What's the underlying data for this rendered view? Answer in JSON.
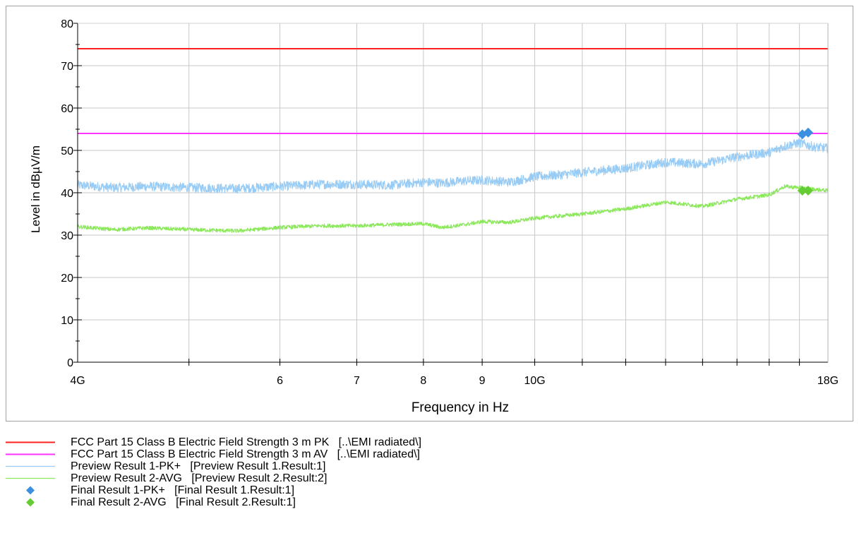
{
  "chart_data": {
    "type": "line",
    "title": "",
    "xlabel": "Frequency in Hz",
    "ylabel": "Level in dBµV/m",
    "x_scale": "log",
    "xlim_hz": [
      4000000000,
      18000000000
    ],
    "ylim": [
      0,
      80
    ],
    "grid": true,
    "legend_position": "bottom",
    "x_tick_labels": [
      {
        "value": 4000000000,
        "label": "4G"
      },
      {
        "value": 6000000000,
        "label": "6"
      },
      {
        "value": 7000000000,
        "label": "7"
      },
      {
        "value": 8000000000,
        "label": "8"
      },
      {
        "value": 9000000000,
        "label": "9"
      },
      {
        "value": 10000000000,
        "label": "10G"
      },
      {
        "value": 18000000000,
        "label": "18G"
      }
    ],
    "y_ticks": [
      0,
      10,
      20,
      30,
      40,
      50,
      60,
      70,
      80
    ],
    "series": [
      {
        "name": "FCC Part 15 Class B Electric Field Strength 3 m PK",
        "source": "[..\\EMI radiated\\]",
        "kind": "limit",
        "color": "#ff2020",
        "level": 74
      },
      {
        "name": "FCC Part 15 Class B Electric Field Strength 3 m AV",
        "source": "[..\\EMI radiated\\]",
        "kind": "limit",
        "color": "#ff33ff",
        "level": 54
      },
      {
        "name": "Preview Result 1-PK+",
        "source": "[Preview Result 1.Result:1]",
        "kind": "trace",
        "color": "#99ccf5",
        "x_ghz": [
          4.0,
          4.3,
          4.6,
          5.0,
          5.5,
          6.0,
          6.5,
          7.0,
          7.5,
          8.0,
          8.3,
          8.7,
          9.0,
          9.5,
          10.0,
          10.5,
          11.0,
          12.0,
          13.0,
          14.0,
          15.0,
          16.0,
          16.5,
          17.0,
          17.5,
          18.0
        ],
        "values": [
          41.8,
          41.2,
          41.5,
          41.2,
          41.0,
          41.5,
          42.0,
          42.0,
          41.8,
          42.5,
          42.3,
          42.8,
          43.0,
          42.5,
          43.8,
          44.2,
          44.8,
          45.8,
          47.2,
          46.8,
          48.5,
          49.5,
          51.0,
          51.8,
          50.8,
          50.5
        ]
      },
      {
        "name": "Preview Result 2-AVG",
        "source": "[Preview Result 2.Result:2]",
        "kind": "trace",
        "color": "#8ae85a",
        "x_ghz": [
          4.0,
          4.3,
          4.6,
          5.0,
          5.5,
          6.0,
          6.5,
          7.0,
          7.5,
          8.0,
          8.3,
          8.7,
          9.0,
          9.5,
          10.0,
          10.5,
          11.0,
          12.0,
          13.0,
          14.0,
          15.0,
          16.0,
          16.5,
          17.0,
          17.5,
          18.0
        ],
        "values": [
          32.0,
          31.3,
          31.7,
          31.3,
          31.0,
          31.8,
          32.2,
          32.2,
          32.5,
          32.7,
          31.8,
          32.5,
          33.2,
          33.0,
          34.0,
          34.5,
          35.0,
          36.2,
          37.8,
          36.8,
          38.5,
          39.5,
          41.5,
          41.2,
          40.8,
          40.5
        ]
      },
      {
        "name": "Final Result 1-PK+",
        "source": "[Final Result 1.Result:1]",
        "kind": "marker",
        "color": "#3d8fe0",
        "x_ghz": [
          17.1,
          17.3
        ],
        "values": [
          53.8,
          54.2
        ]
      },
      {
        "name": "Final Result 2-AVG",
        "source": "[Final Result 2.Result:1]",
        "kind": "marker",
        "color": "#66cc33",
        "x_ghz": [
          17.1,
          17.3
        ],
        "values": [
          40.5,
          40.5
        ]
      }
    ]
  }
}
